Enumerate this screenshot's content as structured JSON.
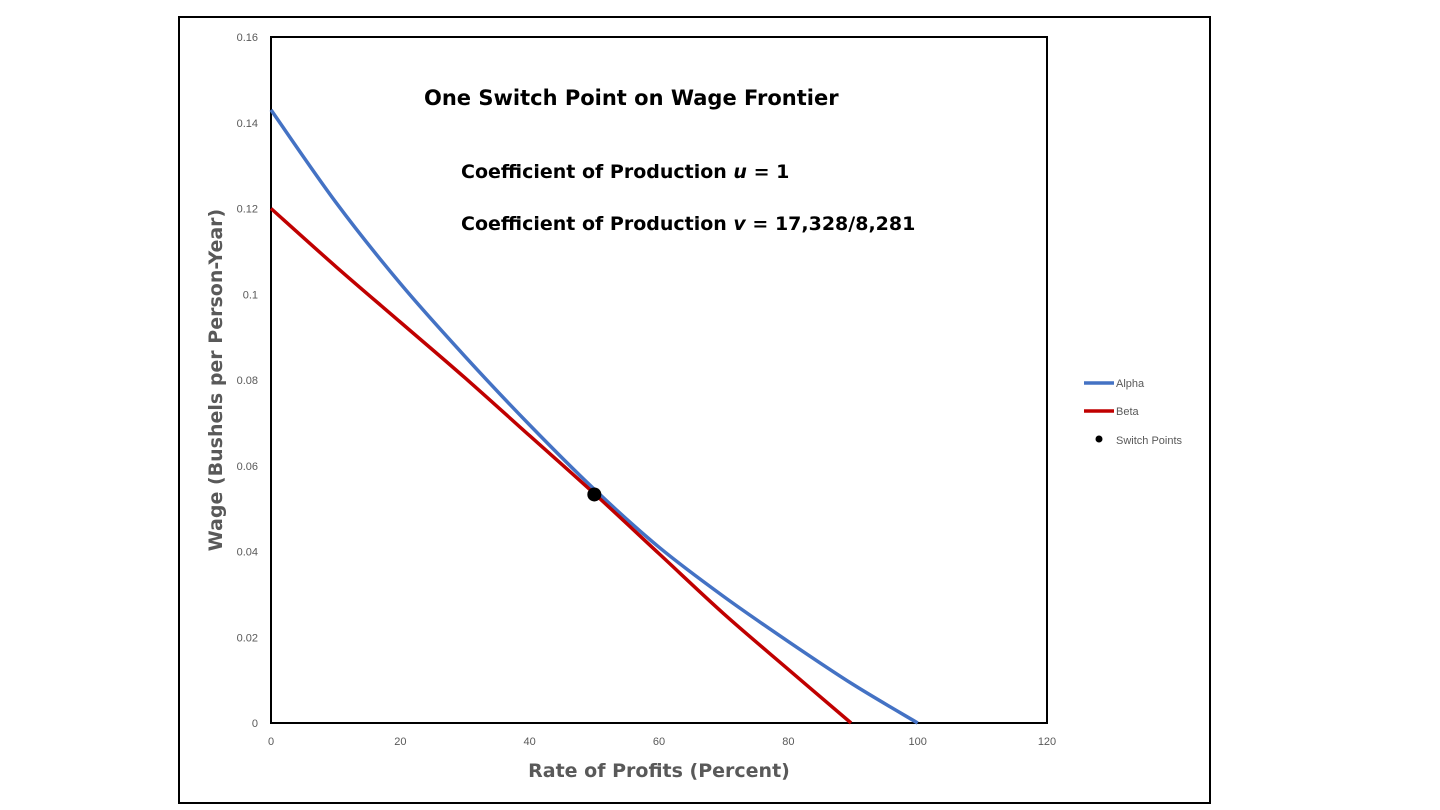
{
  "chart_data": {
    "type": "line",
    "title": "One Switch Point on Wage Frontier",
    "annotations": [
      {
        "prefix": "Coefficient of Production ",
        "variable": "u",
        "suffix": " = 1"
      },
      {
        "prefix": "Coefficient of Production ",
        "variable": "v",
        "suffix": " = 17,328/8,281"
      }
    ],
    "xlabel": "Rate of Profits (Percent)",
    "ylabel": "Wage (Bushels per Person-Year)",
    "xlim": [
      0,
      120
    ],
    "ylim": [
      0,
      0.16
    ],
    "xticks": [
      "0",
      "20",
      "40",
      "60",
      "80",
      "100",
      "120"
    ],
    "yticks": [
      "0",
      "0.02",
      "0.04",
      "0.06",
      "0.08",
      "0.1",
      "0.12",
      "0.14",
      "0.16"
    ],
    "grid": false,
    "legend_position": "right",
    "series": [
      {
        "name": "Alpha",
        "color": "#4472C4",
        "x": [
          0,
          10,
          20,
          30,
          40,
          50,
          60,
          70,
          80,
          90,
          100
        ],
        "y": [
          0.143,
          0.1215,
          0.1025,
          0.0855,
          0.0695,
          0.0545,
          0.041,
          0.0295,
          0.019,
          0.009,
          0.0
        ]
      },
      {
        "name": "Beta",
        "color": "#C00000",
        "x": [
          0,
          10,
          20,
          30,
          40,
          50,
          60,
          70,
          80,
          89.7
        ],
        "y": [
          0.12,
          0.1065,
          0.0935,
          0.0805,
          0.067,
          0.0535,
          0.0395,
          0.0255,
          0.0125,
          0.0
        ]
      }
    ],
    "switch_points": {
      "name": "Switch Points",
      "color": "#000000",
      "points": [
        {
          "x": 50.0,
          "y": 0.0533
        }
      ]
    }
  }
}
